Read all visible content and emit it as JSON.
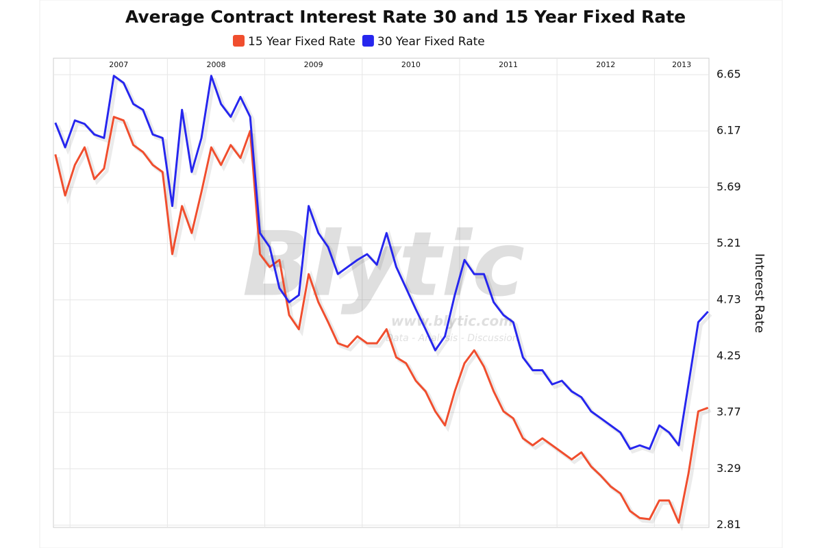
{
  "chart_data": {
    "type": "line",
    "title": "Average Contract Interest Rate 30 and 15 Year Fixed Rate",
    "y_label": "Interest Rate",
    "watermark": [
      "Blytic",
      "www.blytic.com",
      "Data - Analysis - Discussion"
    ],
    "x": [
      2006.85,
      2006.95,
      2007.05,
      2007.15,
      2007.25,
      2007.35,
      2007.45,
      2007.55,
      2007.65,
      2007.75,
      2007.85,
      2007.95,
      2008.05,
      2008.15,
      2008.25,
      2008.35,
      2008.45,
      2008.55,
      2008.65,
      2008.75,
      2008.85,
      2008.95,
      2009.05,
      2009.15,
      2009.25,
      2009.35,
      2009.45,
      2009.55,
      2009.65,
      2009.75,
      2009.85,
      2009.95,
      2010.05,
      2010.15,
      2010.25,
      2010.35,
      2010.45,
      2010.55,
      2010.65,
      2010.75,
      2010.85,
      2010.95,
      2011.05,
      2011.15,
      2011.25,
      2011.35,
      2011.45,
      2011.55,
      2011.65,
      2011.75,
      2011.85,
      2011.95,
      2012.05,
      2012.15,
      2012.25,
      2012.35,
      2012.45,
      2012.55,
      2012.65,
      2012.75,
      2012.85,
      2012.95,
      2013.05,
      2013.15,
      2013.25,
      2013.35,
      2013.45,
      2013.55
    ],
    "series": [
      {
        "name": "15 Year Fixed Rate",
        "color": "#f04e2e",
        "values": [
          5.97,
          5.62,
          5.88,
          6.03,
          5.76,
          5.85,
          6.29,
          6.26,
          6.05,
          5.99,
          5.88,
          5.82,
          5.12,
          5.53,
          5.3,
          5.65,
          6.03,
          5.88,
          6.05,
          5.94,
          6.17,
          5.12,
          5.01,
          5.07,
          4.6,
          4.48,
          4.95,
          4.71,
          4.54,
          4.36,
          4.33,
          4.42,
          4.36,
          4.36,
          4.48,
          4.24,
          4.19,
          4.04,
          3.95,
          3.78,
          3.66,
          3.95,
          4.19,
          4.3,
          4.16,
          3.95,
          3.78,
          3.72,
          3.55,
          3.49,
          3.55,
          3.49,
          3.43,
          3.37,
          3.43,
          3.31,
          3.23,
          3.14,
          3.08,
          2.93,
          2.87,
          2.86,
          3.02,
          3.02,
          2.83,
          3.25,
          3.78,
          3.81
        ]
      },
      {
        "name": "30 Year Fixed Rate",
        "color": "#2626ee",
        "values": [
          6.24,
          6.03,
          6.26,
          6.23,
          6.14,
          6.11,
          6.64,
          6.58,
          6.4,
          6.35,
          6.14,
          6.11,
          5.53,
          6.35,
          5.82,
          6.11,
          6.64,
          6.4,
          6.29,
          6.46,
          6.29,
          5.3,
          5.18,
          4.83,
          4.71,
          4.77,
          5.53,
          5.3,
          5.18,
          4.95,
          5.01,
          5.07,
          5.12,
          5.03,
          5.3,
          5.01,
          4.83,
          4.65,
          4.48,
          4.3,
          4.42,
          4.77,
          5.07,
          4.95,
          4.95,
          4.71,
          4.6,
          4.54,
          4.24,
          4.13,
          4.13,
          4.01,
          4.04,
          3.95,
          3.9,
          3.78,
          3.72,
          3.66,
          3.6,
          3.46,
          3.49,
          3.46,
          3.66,
          3.6,
          3.49,
          4.01,
          4.54,
          4.63
        ]
      }
    ],
    "xlim": [
      2006.83,
      2013.56
    ],
    "xticks": [
      2007,
      2008,
      2009,
      2010,
      2011,
      2012,
      2013
    ],
    "ylim": [
      2.79,
      6.79
    ],
    "yticks": [
      2.81,
      3.29,
      3.77,
      4.25,
      4.73,
      5.21,
      5.69,
      6.17,
      6.65
    ],
    "grid": true
  }
}
